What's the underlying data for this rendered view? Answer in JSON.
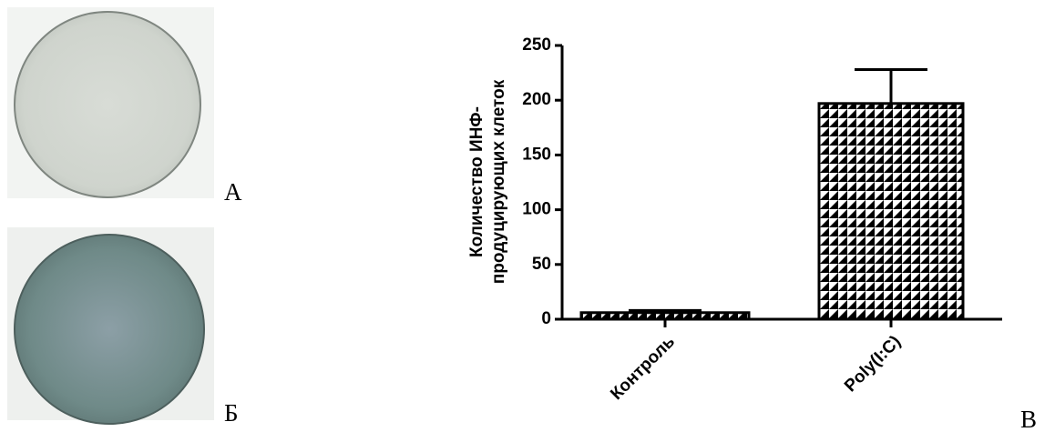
{
  "panels": [
    "А",
    "Б",
    "В"
  ],
  "chart_data": {
    "type": "bar",
    "ylabel": [
      "Количество ИНФ-",
      "продуцирующих клеток"
    ],
    "categories": [
      "Контроль",
      "Poly(I:C)"
    ],
    "values": [
      6,
      197
    ],
    "errors": [
      2,
      31
    ],
    "ylim": [
      0,
      250
    ],
    "yticks": [
      0,
      50,
      100,
      150,
      200,
      250
    ]
  }
}
